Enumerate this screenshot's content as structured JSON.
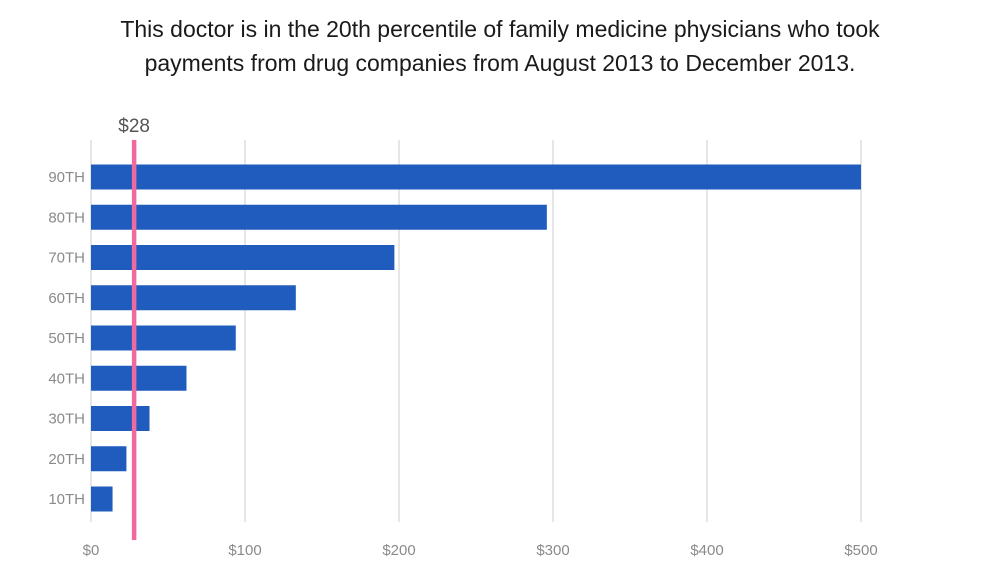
{
  "chart_data": {
    "type": "bar",
    "orientation": "horizontal",
    "title": "This doctor is in the 20th percentile of family medicine physicians who took payments from drug companies from August 2013 to December 2013.",
    "title_lines": [
      "This doctor is in the 20th percentile of family medicine physicians who took",
      "payments from drug companies from August 2013 to December 2013."
    ],
    "categories": [
      "90TH",
      "80TH",
      "70TH",
      "60TH",
      "50TH",
      "40TH",
      "30TH",
      "20TH",
      "10TH"
    ],
    "values": [
      500,
      296,
      197,
      133,
      94,
      62,
      38,
      23,
      14
    ],
    "xlim": [
      0,
      500
    ],
    "x_ticks": [
      0,
      100,
      200,
      300,
      400,
      500
    ],
    "x_tick_labels": [
      "$0",
      "$100",
      "$200",
      "$300",
      "$400",
      "$500"
    ],
    "grid": "vertical",
    "marker": {
      "value": 28,
      "label": "$28"
    },
    "colors": {
      "bar": "#1f5cbd",
      "marker": "#ef6a9e",
      "grid": "#cccccc"
    }
  }
}
